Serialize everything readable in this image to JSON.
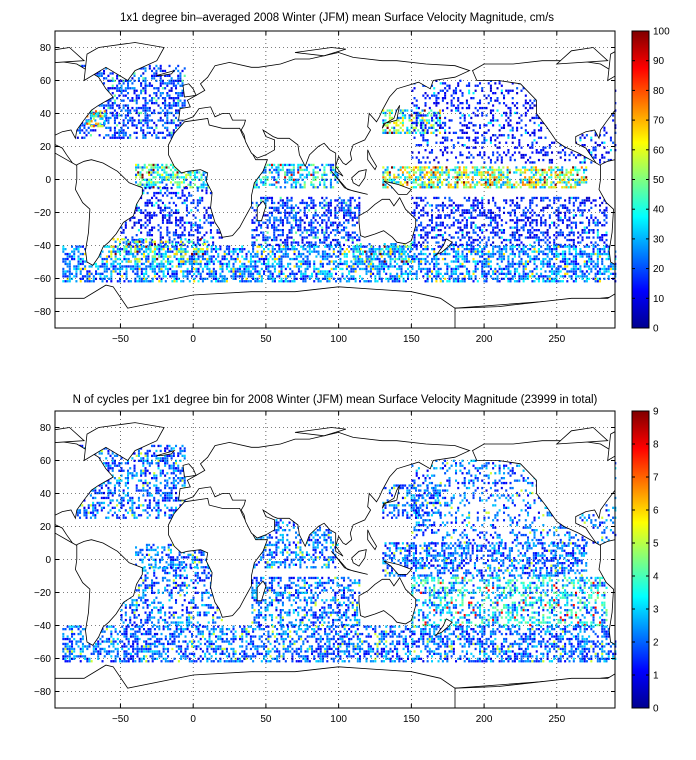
{
  "chart_data": [
    {
      "type": "heatmap",
      "title": "1x1 degree bin–averaged 2008 Winter (JFM) mean Surface Velocity Magnitude, cm/s",
      "xlabel": "",
      "ylabel": "",
      "xlim": [
        -95,
        290
      ],
      "ylim": [
        -90,
        90
      ],
      "x_ticks": [
        -50,
        0,
        50,
        100,
        150,
        200,
        250
      ],
      "x_tick_labels": [
        "−50",
        "0",
        "50",
        "100",
        "150",
        "200",
        "250"
      ],
      "y_ticks": [
        80,
        60,
        40,
        20,
        0,
        -20,
        -40,
        -60,
        -80
      ],
      "y_tick_labels": [
        "80",
        "60",
        "40",
        "20",
        "0",
        "−20",
        "−40",
        "−60",
        "−80"
      ],
      "grid": "dotted",
      "colorbar": {
        "range": [
          0,
          100
        ],
        "ticks": [
          0,
          10,
          20,
          30,
          40,
          50,
          60,
          70,
          80,
          90,
          100
        ],
        "tick_labels": [
          "0",
          "10",
          "20",
          "30",
          "40",
          "50",
          "60",
          "70",
          "80",
          "90",
          "100"
        ],
        "colormap": "jet"
      },
      "regions": [
        {
          "lon": [
            -80,
            -5
          ],
          "lat": [
            25,
            70
          ],
          "value": 18,
          "density": 0.45
        },
        {
          "lon": [
            -75,
            -60
          ],
          "lat": [
            32,
            42
          ],
          "value": 55,
          "density": 0.6
        },
        {
          "lon": [
            130,
            170
          ],
          "lat": [
            28,
            42
          ],
          "value": 45,
          "density": 0.5
        },
        {
          "lon": [
            150,
            290
          ],
          "lat": [
            10,
            60
          ],
          "value": 14,
          "density": 0.25
        },
        {
          "lon": [
            -40,
            20
          ],
          "lat": [
            -5,
            10
          ],
          "value": 40,
          "density": 0.6
        },
        {
          "lon": [
            130,
            270
          ],
          "lat": [
            -5,
            8
          ],
          "value": 50,
          "density": 0.65
        },
        {
          "lon": [
            40,
            100
          ],
          "lat": [
            -5,
            10
          ],
          "value": 35,
          "density": 0.5
        },
        {
          "lon": [
            -50,
            20
          ],
          "lat": [
            -40,
            -5
          ],
          "value": 15,
          "density": 0.35
        },
        {
          "lon": [
            40,
            115
          ],
          "lat": [
            -40,
            -10
          ],
          "value": 18,
          "density": 0.45
        },
        {
          "lon": [
            150,
            285
          ],
          "lat": [
            -40,
            -10
          ],
          "value": 15,
          "density": 0.4
        },
        {
          "lon": [
            -90,
            290
          ],
          "lat": [
            -62,
            -40
          ],
          "value": 25,
          "density": 0.55
        },
        {
          "lon": [
            -60,
            10
          ],
          "lat": [
            -50,
            -35
          ],
          "value": 45,
          "density": 0.35
        },
        {
          "lon": [
            110,
            150
          ],
          "lat": [
            -50,
            -38
          ],
          "value": 40,
          "density": 0.4
        }
      ]
    },
    {
      "type": "heatmap",
      "title": "N of cycles per 1x1 degree bin for 2008 Winter (JFM) mean Surface Velocity Magnitude (23999 in total)",
      "xlabel": "",
      "ylabel": "",
      "xlim": [
        -95,
        290
      ],
      "ylim": [
        -90,
        90
      ],
      "x_ticks": [
        -50,
        0,
        50,
        100,
        150,
        200,
        250
      ],
      "x_tick_labels": [
        "−50",
        "0",
        "50",
        "100",
        "150",
        "200",
        "250"
      ],
      "y_ticks": [
        80,
        60,
        40,
        20,
        0,
        -20,
        -40,
        -60,
        -80
      ],
      "y_tick_labels": [
        "80",
        "60",
        "40",
        "20",
        "0",
        "−20",
        "−40",
        "−60",
        "−80"
      ],
      "grid": "dotted",
      "colorbar": {
        "range": [
          0,
          9
        ],
        "ticks": [
          0,
          1,
          2,
          3,
          4,
          5,
          6,
          7,
          8,
          9
        ],
        "tick_labels": [
          "0",
          "1",
          "2",
          "3",
          "4",
          "5",
          "6",
          "7",
          "8",
          "9"
        ],
        "colormap": "jet"
      },
      "regions": [
        {
          "lon": [
            -80,
            -5
          ],
          "lat": [
            25,
            70
          ],
          "value": 2,
          "density": 0.45
        },
        {
          "lon": [
            130,
            170
          ],
          "lat": [
            25,
            45
          ],
          "value": 2,
          "density": 0.45
        },
        {
          "lon": [
            150,
            290
          ],
          "lat": [
            10,
            60
          ],
          "value": 2,
          "density": 0.25
        },
        {
          "lon": [
            -40,
            20
          ],
          "lat": [
            -5,
            10
          ],
          "value": 2,
          "density": 0.45
        },
        {
          "lon": [
            130,
            270
          ],
          "lat": [
            -10,
            10
          ],
          "value": 2,
          "density": 0.5
        },
        {
          "lon": [
            40,
            100
          ],
          "lat": [
            -5,
            25
          ],
          "value": 2,
          "density": 0.45
        },
        {
          "lon": [
            -50,
            20
          ],
          "lat": [
            -40,
            -5
          ],
          "value": 2,
          "density": 0.35
        },
        {
          "lon": [
            40,
            115
          ],
          "lat": [
            -40,
            -10
          ],
          "value": 2,
          "density": 0.45
        },
        {
          "lon": [
            150,
            285
          ],
          "lat": [
            -40,
            -10
          ],
          "value": 3,
          "density": 0.45
        },
        {
          "lon": [
            -90,
            290
          ],
          "lat": [
            -62,
            -40
          ],
          "value": 2,
          "density": 0.5
        }
      ]
    }
  ]
}
